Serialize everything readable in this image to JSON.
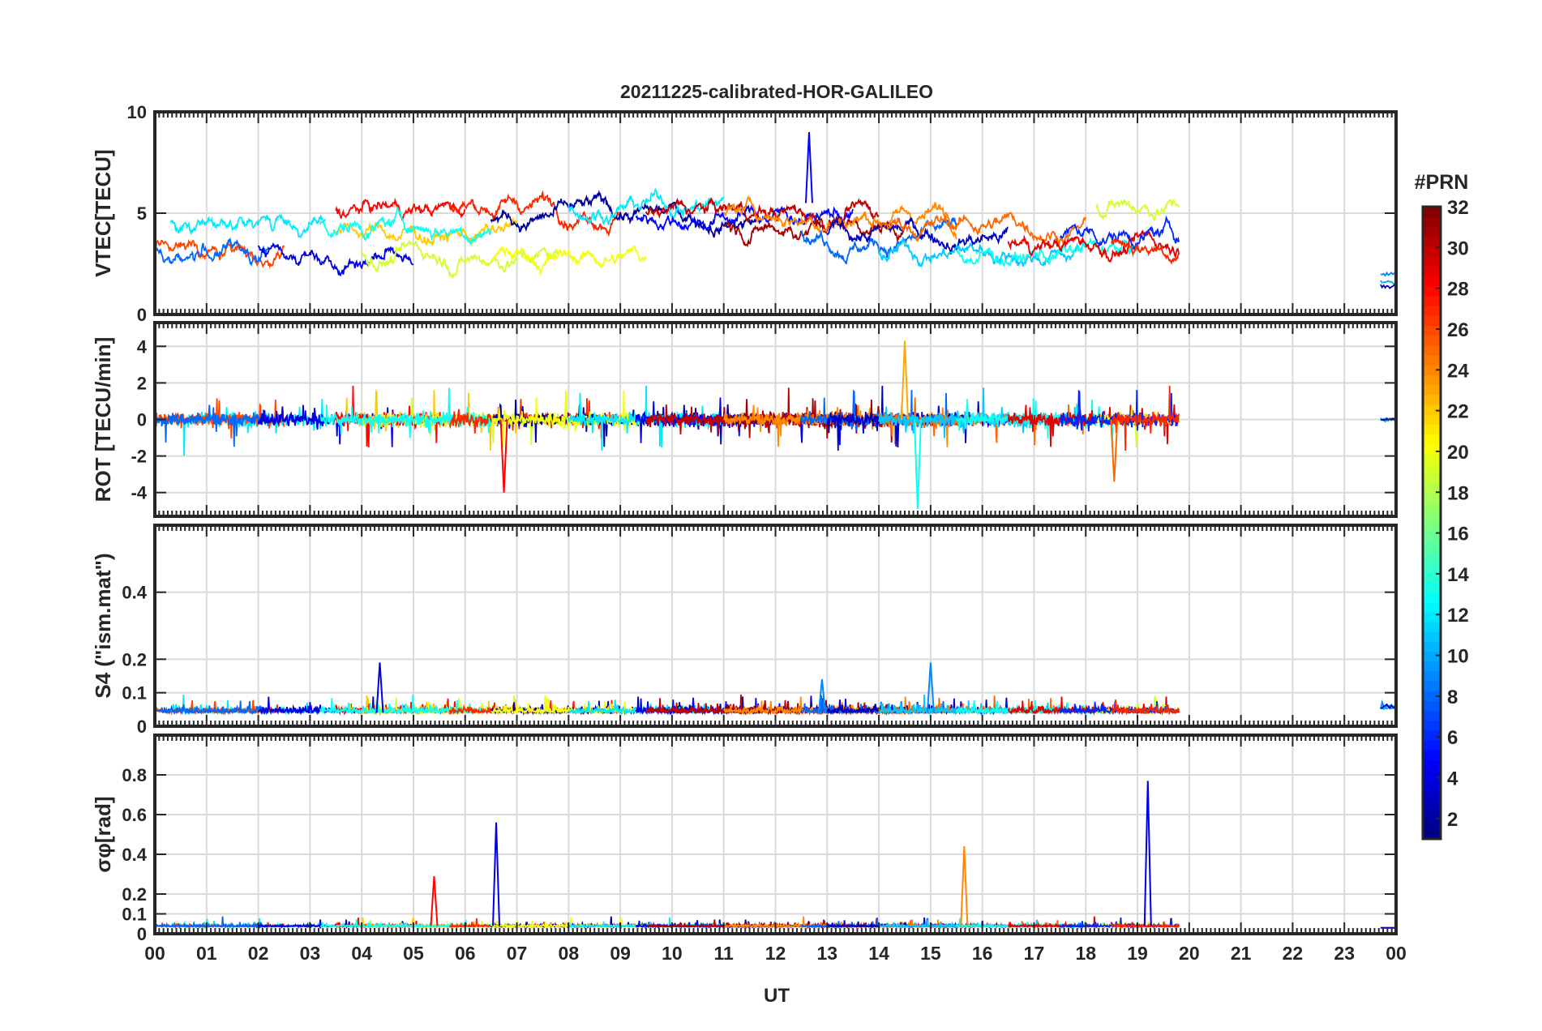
{
  "figure": {
    "title": "20211225-calibrated-HOR-GALILEO",
    "xlabel": "UT",
    "xticks": [
      "00",
      "01",
      "02",
      "03",
      "04",
      "05",
      "06",
      "07",
      "08",
      "09",
      "10",
      "11",
      "12",
      "13",
      "14",
      "15",
      "16",
      "17",
      "18",
      "19",
      "20",
      "21",
      "22",
      "23",
      "00"
    ]
  },
  "colorbar": {
    "title": "#PRN",
    "ticks": [
      "2",
      "4",
      "6",
      "8",
      "10",
      "12",
      "14",
      "16",
      "18",
      "20",
      "22",
      "24",
      "26",
      "28",
      "30",
      "32"
    ],
    "range": [
      1,
      32
    ],
    "colormap": "jet"
  },
  "chart_data": [
    {
      "type": "line",
      "panel": "vtec",
      "ylabel": "VTEC[TECU]",
      "ylim": [
        0,
        10
      ],
      "yticks": [
        "0",
        "5",
        "10"
      ],
      "xlim": [
        0,
        24
      ],
      "data_extent_hours": [
        0,
        19.8
      ],
      "late_segment_hours": [
        23.7,
        24
      ],
      "typical_range": [
        1,
        8
      ],
      "peak": {
        "x": 12.65,
        "y": 9.0,
        "prn": 5
      }
    },
    {
      "type": "line",
      "panel": "rot",
      "ylabel": "ROT [TECU/min]",
      "ylim": [
        -5.3,
        5.3
      ],
      "yticks": [
        "-4",
        "-2",
        "0",
        "2",
        "4"
      ],
      "xlim": [
        0,
        24
      ],
      "data_extent_hours": [
        0,
        19.8
      ],
      "peaks": [
        {
          "x": 14.5,
          "y": 4.3,
          "prn": 23
        },
        {
          "x": 14.75,
          "y": -4.9,
          "prn": 13
        },
        {
          "x": 6.75,
          "y": -4.0,
          "prn": 28
        },
        {
          "x": 18.55,
          "y": -3.4,
          "prn": 25
        }
      ]
    },
    {
      "type": "line",
      "panel": "s4",
      "ylabel": "S4 (\"ism.mat\")",
      "ylim": [
        0,
        0.6
      ],
      "yticks": [
        "0",
        "0.1",
        "0.2",
        "0.4"
      ],
      "xlim": [
        0,
        24
      ],
      "data_extent_hours": [
        0,
        19.8
      ],
      "peaks": [
        {
          "x": 4.35,
          "y": 0.19,
          "prn": 4
        },
        {
          "x": 15.0,
          "y": 0.19,
          "prn": 9
        },
        {
          "x": 12.9,
          "y": 0.14,
          "prn": 9
        }
      ]
    },
    {
      "type": "line",
      "panel": "sigma-phi",
      "ylabel": "σφ[rad]",
      "ylim": [
        0,
        1.0
      ],
      "yticks": [
        "0",
        "0.1",
        "0.2",
        "0.4",
        "0.6",
        "0.8"
      ],
      "xlim": [
        0,
        24
      ],
      "data_extent_hours": [
        0,
        19.8
      ],
      "peaks": [
        {
          "x": 19.2,
          "y": 0.77,
          "prn": 4
        },
        {
          "x": 6.6,
          "y": 0.56,
          "prn": 4
        },
        {
          "x": 15.65,
          "y": 0.44,
          "prn": 24
        },
        {
          "x": 5.4,
          "y": 0.29,
          "prn": 28
        }
      ]
    }
  ]
}
